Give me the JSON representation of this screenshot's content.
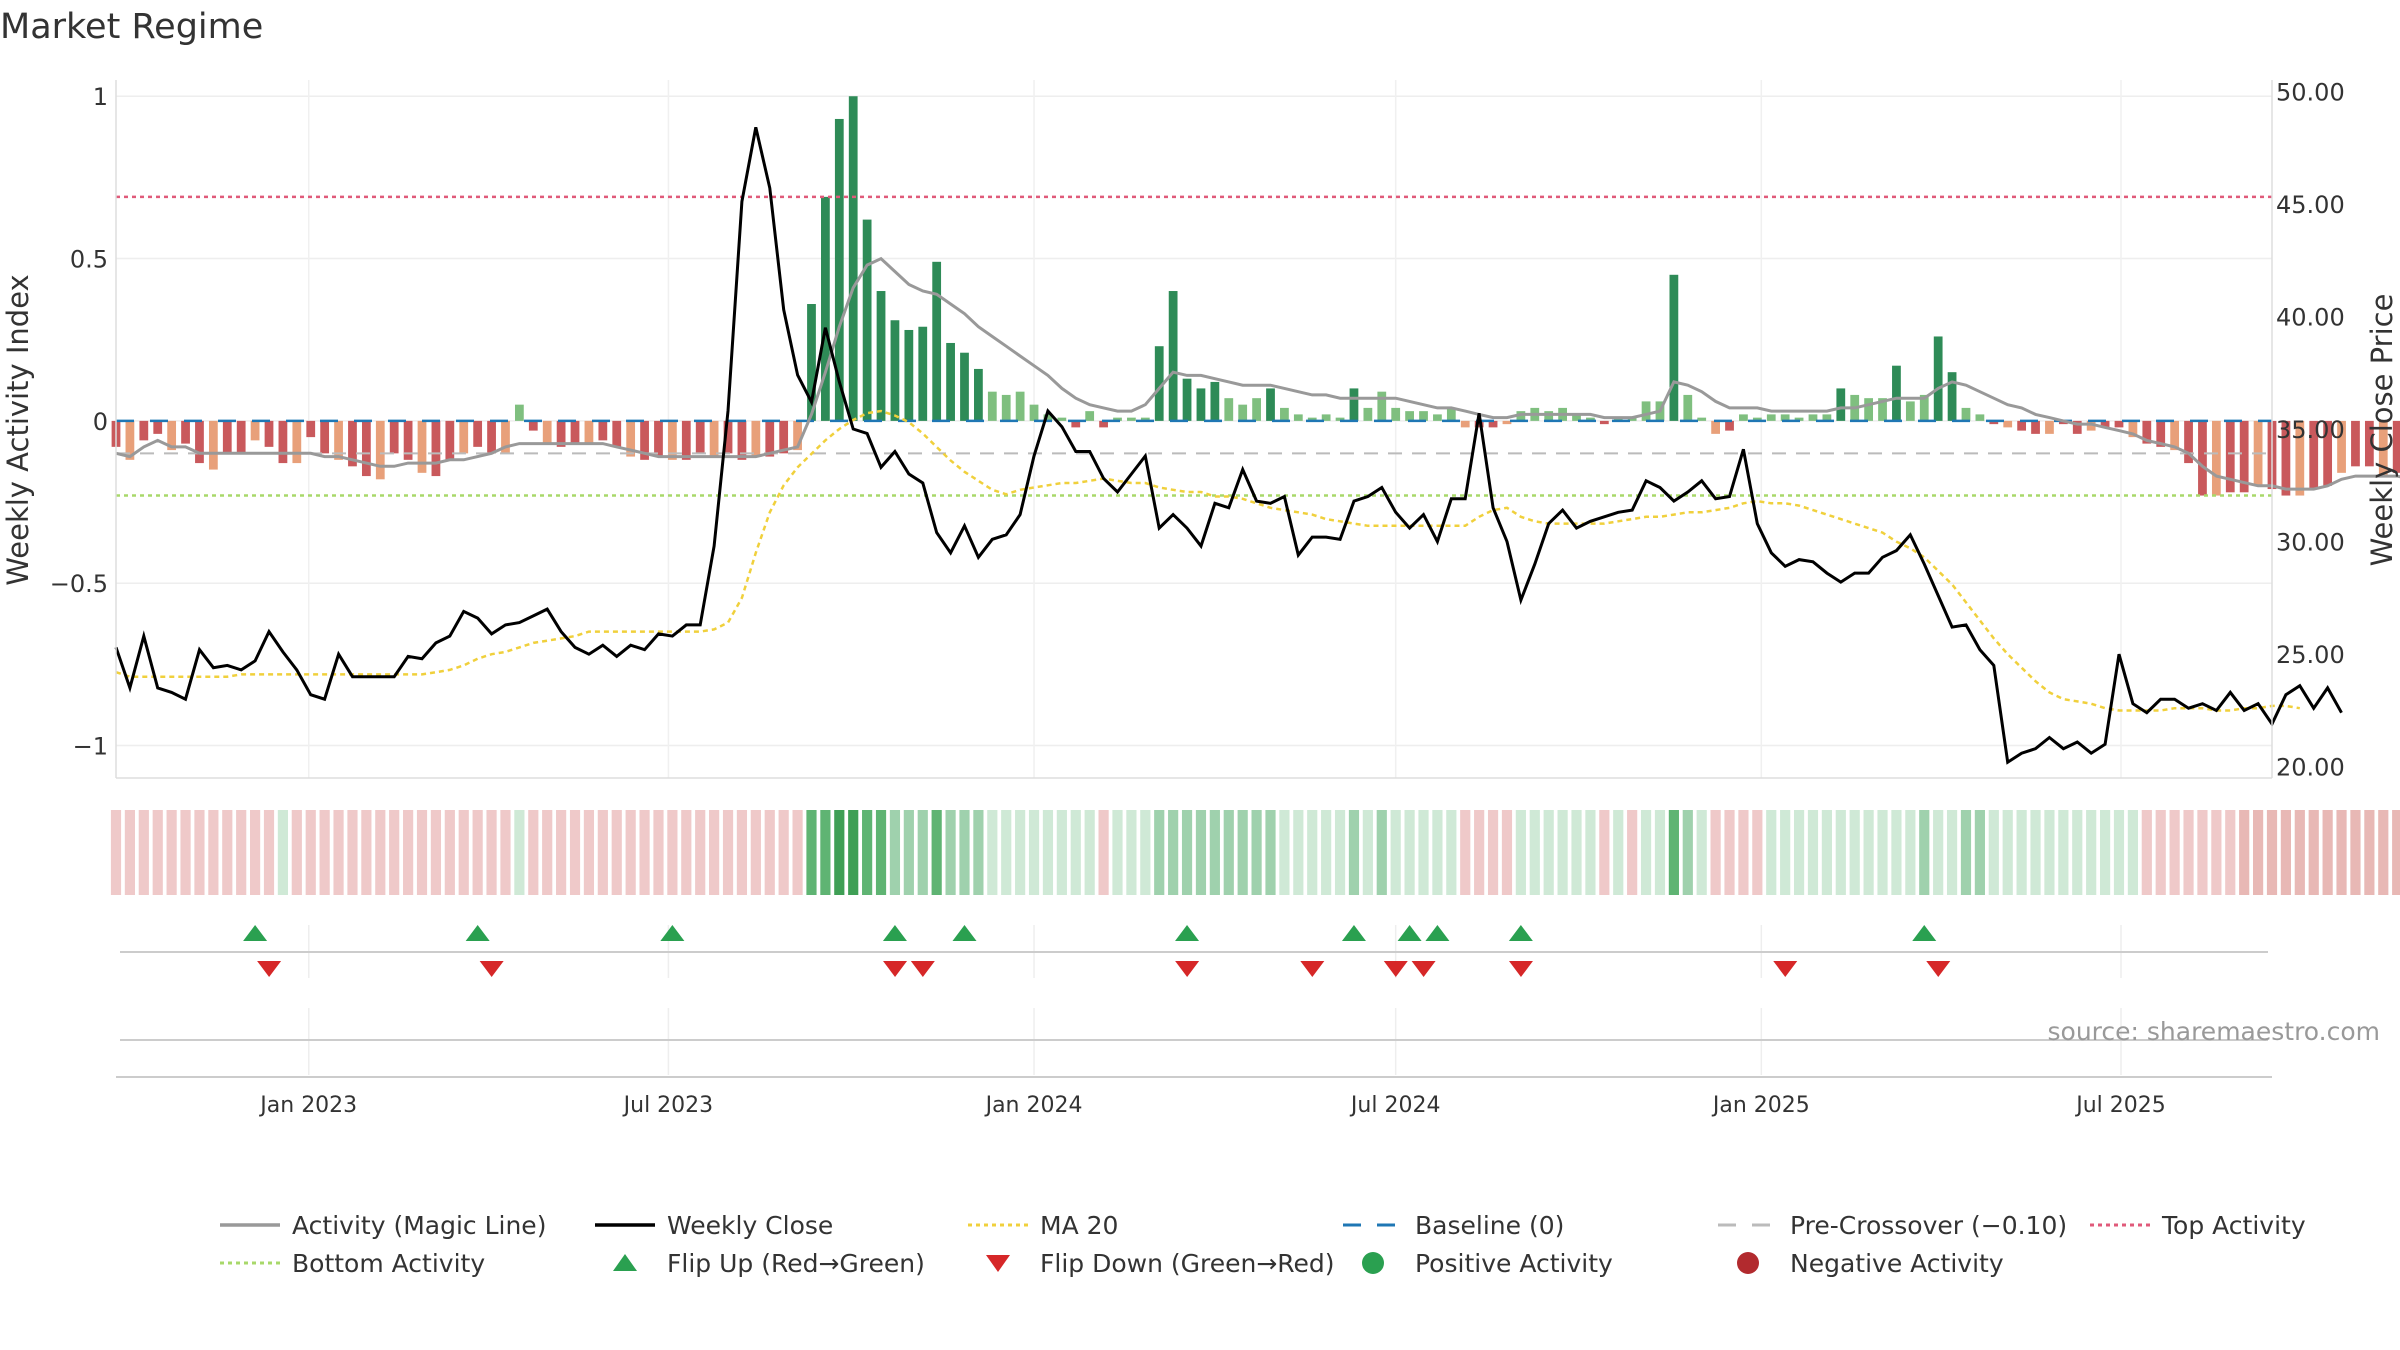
{
  "chart_data": {
    "type": "bar",
    "title": "Market Regime",
    "ylabel_left": "Weekly Activity Index",
    "ylabel_right": "Weekly Close Price",
    "ylim_left": [
      -1.1,
      1.05
    ],
    "ylim_right": [
      19.5,
      50.5
    ],
    "yticks_left": [
      {
        "v": 1,
        "label": "1"
      },
      {
        "v": 0.5,
        "label": "0.5"
      },
      {
        "v": 0,
        "label": "0"
      },
      {
        "v": -0.5,
        "label": "−0.5"
      },
      {
        "v": -1,
        "label": "−1"
      }
    ],
    "yticks_right": [
      "20.00",
      "25.00",
      "30.00",
      "35.00",
      "40.00",
      "45.00",
      "50.00"
    ],
    "date_range": [
      "2022-09-26",
      "2025-09-15"
    ],
    "xticks": [
      {
        "date": "2023-01-01",
        "label": "Jan 2023"
      },
      {
        "date": "2023-07-01",
        "label": "Jul 2023"
      },
      {
        "date": "2024-01-01",
        "label": "Jan 2024"
      },
      {
        "date": "2024-07-01",
        "label": "Jul 2024"
      },
      {
        "date": "2025-01-01",
        "label": "Jan 2025"
      },
      {
        "date": "2025-07-01",
        "label": "Jul 2025"
      }
    ],
    "top_activity": 0.69,
    "bottom_activity": -0.23,
    "pre_crossover": -0.1,
    "baseline": 0,
    "colors": {
      "pos_strong": "#2e8b57",
      "pos_weak": "#7fbf7f",
      "neg_strong": "#c9595c",
      "neg_weak": "#e8a07a",
      "magic_line": "#999999",
      "close": "#000000",
      "ma20": "#f0d03c",
      "baseline": "#1f77b4",
      "pre_crossover": "#bbbbbb",
      "top": "#e05a7a",
      "bottom": "#a8d86a",
      "flip_up": "#2aa050",
      "flip_down": "#d62728"
    },
    "activity": [
      -0.08,
      -0.12,
      -0.06,
      -0.04,
      -0.09,
      -0.07,
      -0.13,
      -0.15,
      -0.1,
      -0.1,
      -0.06,
      -0.08,
      -0.13,
      -0.13,
      -0.05,
      -0.1,
      -0.12,
      -0.14,
      -0.17,
      -0.18,
      -0.1,
      -0.12,
      -0.16,
      -0.17,
      -0.12,
      -0.1,
      -0.08,
      -0.1,
      -0.1,
      0.05,
      -0.03,
      -0.07,
      -0.08,
      -0.07,
      -0.07,
      -0.06,
      -0.08,
      -0.11,
      -0.12,
      -0.11,
      -0.12,
      -0.12,
      -0.1,
      -0.11,
      -0.1,
      -0.12,
      -0.11,
      -0.11,
      -0.1,
      -0.09,
      0.36,
      0.69,
      0.93,
      1.0,
      0.62,
      0.4,
      0.31,
      0.28,
      0.29,
      0.49,
      0.24,
      0.21,
      0.16,
      0.09,
      0.08,
      0.09,
      0.05,
      0.02,
      0.01,
      -0.02,
      0.03,
      -0.02,
      0.01,
      0.01,
      0.01,
      0.23,
      0.4,
      0.13,
      0.1,
      0.12,
      0.07,
      0.05,
      0.07,
      0.1,
      0.04,
      0.02,
      0.01,
      0.02,
      0.01,
      0.1,
      0.04,
      0.09,
      0.04,
      0.03,
      0.03,
      0.02,
      0.04,
      -0.02,
      -0.02,
      -0.02,
      -0.01,
      0.03,
      0.04,
      0.03,
      0.04,
      0.02,
      0.01,
      -0.01,
      0.01,
      0.01,
      0.06,
      0.06,
      0.45,
      0.08,
      0.01,
      -0.04,
      -0.03,
      0.02,
      0.01,
      0.02,
      0.02,
      0.01,
      0.02,
      0.02,
      0.1,
      0.08,
      0.07,
      0.07,
      0.17,
      0.06,
      0.08,
      0.26,
      0.15,
      0.04,
      0.02,
      -0.01,
      -0.02,
      -0.03,
      -0.04,
      -0.04,
      -0.01,
      -0.04,
      -0.03,
      -0.02,
      -0.02,
      -0.05,
      -0.07,
      -0.08,
      -0.09,
      -0.13,
      -0.23,
      -0.23,
      -0.22,
      -0.22,
      -0.2,
      -0.21,
      -0.23,
      -0.23,
      -0.21,
      -0.2,
      -0.16,
      -0.14,
      -0.14,
      -0.17,
      -0.16,
      -0.19,
      -0.18,
      -0.2,
      -0.16,
      -0.19,
      -0.19,
      -0.21,
      -0.16,
      -0.18,
      -0.21,
      -0.17,
      -0.19
    ],
    "magic_line": [
      -0.1,
      -0.11,
      -0.08,
      -0.06,
      -0.08,
      -0.08,
      -0.1,
      -0.1,
      -0.1,
      -0.1,
      -0.1,
      -0.1,
      -0.1,
      -0.1,
      -0.1,
      -0.11,
      -0.11,
      -0.12,
      -0.13,
      -0.14,
      -0.14,
      -0.13,
      -0.13,
      -0.13,
      -0.12,
      -0.12,
      -0.11,
      -0.1,
      -0.08,
      -0.07,
      -0.07,
      -0.07,
      -0.07,
      -0.07,
      -0.07,
      -0.07,
      -0.08,
      -0.09,
      -0.1,
      -0.11,
      -0.11,
      -0.11,
      -0.11,
      -0.11,
      -0.11,
      -0.11,
      -0.11,
      -0.1,
      -0.09,
      -0.08,
      0.02,
      0.15,
      0.29,
      0.41,
      0.48,
      0.5,
      0.46,
      0.42,
      0.4,
      0.39,
      0.36,
      0.33,
      0.29,
      0.26,
      0.23,
      0.2,
      0.17,
      0.14,
      0.1,
      0.07,
      0.05,
      0.04,
      0.03,
      0.03,
      0.05,
      0.1,
      0.15,
      0.14,
      0.14,
      0.13,
      0.12,
      0.11,
      0.11,
      0.11,
      0.1,
      0.09,
      0.08,
      0.08,
      0.07,
      0.07,
      0.07,
      0.07,
      0.07,
      0.06,
      0.05,
      0.04,
      0.04,
      0.03,
      0.02,
      0.01,
      0.01,
      0.02,
      0.02,
      0.02,
      0.02,
      0.02,
      0.02,
      0.01,
      0.01,
      0.01,
      0.02,
      0.03,
      0.12,
      0.11,
      0.09,
      0.06,
      0.04,
      0.04,
      0.04,
      0.03,
      0.03,
      0.03,
      0.03,
      0.03,
      0.04,
      0.04,
      0.05,
      0.06,
      0.07,
      0.07,
      0.07,
      0.1,
      0.12,
      0.11,
      0.09,
      0.07,
      0.05,
      0.04,
      0.02,
      0.01,
      0.0,
      -0.01,
      -0.01,
      -0.02,
      -0.03,
      -0.04,
      -0.06,
      -0.07,
      -0.08,
      -0.1,
      -0.14,
      -0.17,
      -0.18,
      -0.19,
      -0.2,
      -0.2,
      -0.21,
      -0.21,
      -0.21,
      -0.2,
      -0.18,
      -0.17,
      -0.17,
      -0.17,
      -0.17,
      -0.18,
      -0.18,
      -0.18,
      -0.18,
      -0.18,
      -0.18,
      -0.19,
      -0.18,
      -0.18,
      -0.18,
      -0.18,
      -0.18
    ],
    "close": [
      25.3,
      23.5,
      25.8,
      23.5,
      23.3,
      23.0,
      25.2,
      24.4,
      24.5,
      24.3,
      24.7,
      26.0,
      25.1,
      24.3,
      23.2,
      23.0,
      25.0,
      24.0,
      24.0,
      24.0,
      24.0,
      24.9,
      24.8,
      25.5,
      25.8,
      26.9,
      26.6,
      25.9,
      26.3,
      26.4,
      26.7,
      27.0,
      26.0,
      25.3,
      25.0,
      25.4,
      24.9,
      25.4,
      25.2,
      25.9,
      25.8,
      26.3,
      26.3,
      29.8,
      35.8,
      45.1,
      48.4,
      45.7,
      40.3,
      37.4,
      36.2,
      39.5,
      37.1,
      35.0,
      34.8,
      33.3,
      34.0,
      33.0,
      32.6,
      30.4,
      29.5,
      30.7,
      29.3,
      30.1,
      30.3,
      31.2,
      33.8,
      35.8,
      35.1,
      34.0,
      34.0,
      32.8,
      32.2,
      33.0,
      33.8,
      30.6,
      31.2,
      30.6,
      29.8,
      31.7,
      31.5,
      33.2,
      31.8,
      31.7,
      32.0,
      29.4,
      30.2,
      30.2,
      30.1,
      31.8,
      32.0,
      32.4,
      31.3,
      30.6,
      31.2,
      30.0,
      31.9,
      31.9,
      35.7,
      31.5,
      30.0,
      27.4,
      29.0,
      30.8,
      31.4,
      30.6,
      30.9,
      31.1,
      31.3,
      31.4,
      32.7,
      32.4,
      31.8,
      32.2,
      32.7,
      31.9,
      32.0,
      34.1,
      30.8,
      29.5,
      28.9,
      29.2,
      29.1,
      28.6,
      28.2,
      28.6,
      28.6,
      29.3,
      29.6,
      30.3,
      29.0,
      27.6,
      26.2,
      26.3,
      25.2,
      24.5,
      20.2,
      20.6,
      20.8,
      21.3,
      20.8,
      21.1,
      20.6,
      21.0,
      25.0,
      22.8,
      22.4,
      23.0,
      23.0,
      22.6,
      22.8,
      22.5,
      23.3,
      22.5,
      22.8,
      21.9,
      23.2,
      23.6,
      22.6,
      23.5,
      22.4
    ],
    "ma20": [
      24.2,
      24.0,
      24.0,
      24.0,
      24.0,
      24.0,
      24.0,
      24.0,
      24.0,
      24.1,
      24.1,
      24.1,
      24.1,
      24.1,
      24.1,
      24.1,
      24.1,
      24.1,
      24.1,
      24.1,
      24.1,
      24.1,
      24.1,
      24.2,
      24.3,
      24.5,
      24.8,
      25.0,
      25.1,
      25.3,
      25.5,
      25.6,
      25.7,
      25.8,
      26.0,
      26.0,
      26.0,
      26.0,
      26.0,
      26.0,
      26.0,
      26.0,
      26.0,
      26.1,
      26.4,
      27.5,
      29.5,
      31.3,
      32.5,
      33.3,
      33.9,
      34.5,
      35.0,
      35.4,
      35.7,
      35.8,
      35.6,
      35.3,
      34.8,
      34.2,
      33.6,
      33.1,
      32.7,
      32.3,
      32.1,
      32.3,
      32.4,
      32.5,
      32.6,
      32.6,
      32.7,
      32.8,
      32.7,
      32.6,
      32.6,
      32.4,
      32.3,
      32.2,
      32.2,
      32.0,
      32.0,
      31.9,
      31.7,
      31.5,
      31.4,
      31.3,
      31.2,
      31.0,
      30.9,
      30.8,
      30.7,
      30.7,
      30.7,
      30.7,
      30.7,
      30.7,
      30.7,
      30.7,
      31.1,
      31.4,
      31.5,
      31.1,
      30.9,
      30.8,
      30.8,
      30.8,
      30.8,
      30.8,
      30.9,
      31.0,
      31.1,
      31.1,
      31.2,
      31.3,
      31.3,
      31.4,
      31.5,
      31.7,
      31.8,
      31.7,
      31.7,
      31.6,
      31.4,
      31.2,
      31.0,
      30.8,
      30.6,
      30.4,
      30.0,
      29.7,
      29.3,
      28.7,
      28.1,
      27.3,
      26.5,
      25.7,
      25.0,
      24.4,
      23.8,
      23.3,
      23.0,
      22.9,
      22.8,
      22.6,
      22.5,
      22.5,
      22.5,
      22.5,
      22.6,
      22.6,
      22.6,
      22.5,
      22.5,
      22.6,
      22.6,
      22.7,
      22.7,
      22.6
    ],
    "regime": [
      "n",
      "n",
      "n",
      "n",
      "n",
      "n",
      "n",
      "n",
      "n",
      "n",
      "n",
      "n",
      "p",
      "n",
      "n",
      "n",
      "n",
      "n",
      "n",
      "n",
      "n",
      "n",
      "n",
      "n",
      "n",
      "n",
      "n",
      "n",
      "n",
      "p",
      "n",
      "n",
      "n",
      "n",
      "n",
      "n",
      "n",
      "n",
      "n",
      "n",
      "n",
      "n",
      "n",
      "n",
      "n",
      "n",
      "n",
      "n",
      "n",
      "n",
      "G",
      "G",
      "H",
      "H",
      "G",
      "G",
      "M",
      "M",
      "M",
      "G",
      "M",
      "M",
      "M",
      "p",
      "p",
      "p",
      "p",
      "p",
      "p",
      "p",
      "p",
      "n",
      "p",
      "p",
      "p",
      "M",
      "M",
      "M",
      "M",
      "M",
      "M",
      "M",
      "M",
      "M",
      "p",
      "p",
      "p",
      "p",
      "p",
      "M",
      "p",
      "M",
      "p",
      "p",
      "p",
      "p",
      "p",
      "n",
      "n",
      "n",
      "n",
      "p",
      "p",
      "p",
      "p",
      "p",
      "p",
      "n",
      "p",
      "n",
      "p",
      "p",
      "G",
      "M",
      "p",
      "n",
      "n",
      "n",
      "n",
      "p",
      "p",
      "p",
      "p",
      "p",
      "p",
      "p",
      "p",
      "p",
      "p",
      "p",
      "M",
      "p",
      "p",
      "M",
      "M",
      "p",
      "p",
      "p",
      "p",
      "p",
      "p",
      "p",
      "p",
      "p",
      "p",
      "p",
      "n",
      "n",
      "n",
      "n",
      "n",
      "n",
      "n",
      "d",
      "d",
      "d",
      "d",
      "d",
      "d",
      "d",
      "d",
      "d",
      "d",
      "d",
      "d",
      "d",
      "d",
      "d",
      "d",
      "d",
      "d",
      "d",
      "d",
      "d",
      "d",
      "d",
      "d",
      "d",
      "d"
    ],
    "flip_up": [
      "2022-12-05",
      "2023-03-27",
      "2023-07-03",
      "2023-10-23",
      "2023-11-27",
      "2024-03-18",
      "2024-06-10",
      "2024-07-08",
      "2024-07-22",
      "2024-09-02",
      "2025-03-24"
    ],
    "flip_down": [
      "2022-12-05",
      "2023-03-27",
      "2023-10-16",
      "2023-10-30",
      "2024-03-11",
      "2024-05-13",
      "2024-06-24",
      "2024-07-08",
      "2024-08-26",
      "2025-01-06",
      "2025-03-24"
    ],
    "legend": [
      {
        "label": "Activity (Magic Line)",
        "marker": "line",
        "color": "#999999"
      },
      {
        "label": "Weekly Close",
        "marker": "line",
        "color": "#000000"
      },
      {
        "label": "MA 20",
        "marker": "dotted",
        "color": "#f0d03c"
      },
      {
        "label": "Baseline (0)",
        "marker": "dashed",
        "color": "#1f77b4"
      },
      {
        "label": "Pre-Crossover (−0.10)",
        "marker": "dashed",
        "color": "#bbbbbb"
      },
      {
        "label": "Top Activity",
        "marker": "dotted",
        "color": "#e05a7a"
      },
      {
        "label": "Bottom Activity",
        "marker": "dotted",
        "color": "#a8d86a"
      },
      {
        "label": "Flip Up (Red→Green)",
        "marker": "triangle-up",
        "color": "#2aa050"
      },
      {
        "label": "Flip Down (Green→Red)",
        "marker": "triangle-down",
        "color": "#d62728"
      },
      {
        "label": "Positive Activity",
        "marker": "circle",
        "color": "#2aa050"
      },
      {
        "label": "Negative Activity",
        "marker": "circle",
        "color": "#b22a2e"
      }
    ],
    "source": "source: sharemaestro.com"
  }
}
